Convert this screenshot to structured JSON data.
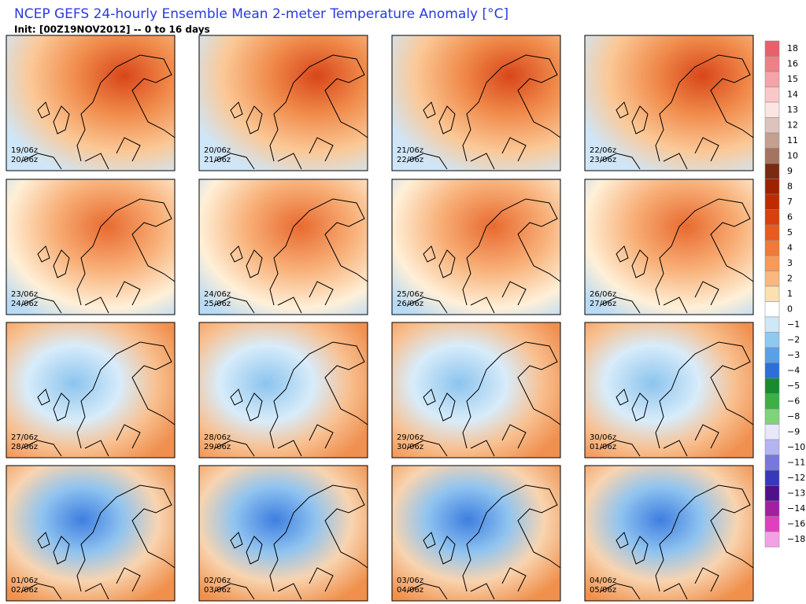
{
  "header": {
    "title": "NCEP GEFS 24-hourly Ensemble Mean 2-meter Temperature Anomaly [°C]",
    "subtitle": "Init: [00Z19NOV2012] -- 0 to 16 days"
  },
  "panels": [
    {
      "start": "19/06z",
      "end": "20/06z"
    },
    {
      "start": "20/06z",
      "end": "21/06z"
    },
    {
      "start": "21/06z",
      "end": "22/06z"
    },
    {
      "start": "22/06z",
      "end": "23/06z"
    },
    {
      "start": "23/06z",
      "end": "24/06z"
    },
    {
      "start": "24/06z",
      "end": "25/06z"
    },
    {
      "start": "25/06z",
      "end": "26/06z"
    },
    {
      "start": "26/06z",
      "end": "27/06z"
    },
    {
      "start": "27/06z",
      "end": "28/06z"
    },
    {
      "start": "28/06z",
      "end": "29/06z"
    },
    {
      "start": "29/06z",
      "end": "30/06z"
    },
    {
      "start": "30/06z",
      "end": "01/06z"
    },
    {
      "start": "01/06z",
      "end": "02/06z"
    },
    {
      "start": "02/06z",
      "end": "03/06z"
    },
    {
      "start": "03/06z",
      "end": "04/06z"
    },
    {
      "start": "04/06z",
      "end": "05/06z"
    }
  ],
  "colorbar": {
    "labels": [
      "18",
      "16",
      "15",
      "14",
      "13",
      "12",
      "11",
      "10",
      "9",
      "8",
      "7",
      "6",
      "5",
      "4",
      "3",
      "2",
      "1",
      "0",
      "−1",
      "−2",
      "−3",
      "−4",
      "−5",
      "−6",
      "−8",
      "−9",
      "−10",
      "−11",
      "−12",
      "−13",
      "−14",
      "−16",
      "−18"
    ]
  }
}
